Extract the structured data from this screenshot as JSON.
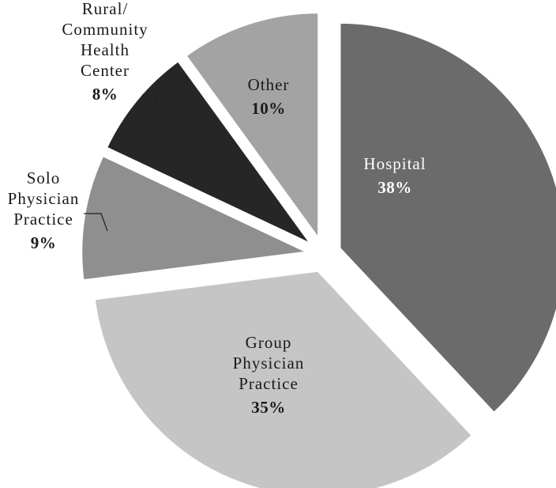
{
  "chart_data": {
    "type": "pie",
    "title": "",
    "slices": [
      {
        "label_lines": [
          "Hospital"
        ],
        "value_text": "38%",
        "value": 38,
        "color": "#6b6b6b",
        "text_color": "#ffffff"
      },
      {
        "label_lines": [
          "Group",
          "Physician",
          "Practice"
        ],
        "value_text": "35%",
        "value": 35,
        "color": "#c5c5c5",
        "text_color": "#1a1a1a"
      },
      {
        "label_lines": [
          "Solo",
          "Physician",
          "Practice"
        ],
        "value_text": "9%",
        "value": 9,
        "color": "#8f8f8f",
        "text_color": "#1a1a1a"
      },
      {
        "label_lines": [
          "Rural/",
          "Community",
          "Health",
          "Center"
        ],
        "value_text": "8%",
        "value": 8,
        "color": "#262626",
        "text_color": "#1a1a1a"
      },
      {
        "label_lines": [
          "Other"
        ],
        "value_text": "10%",
        "value": 10,
        "color": "#a3a3a3",
        "text_color": "#1a1a1a"
      }
    ]
  }
}
